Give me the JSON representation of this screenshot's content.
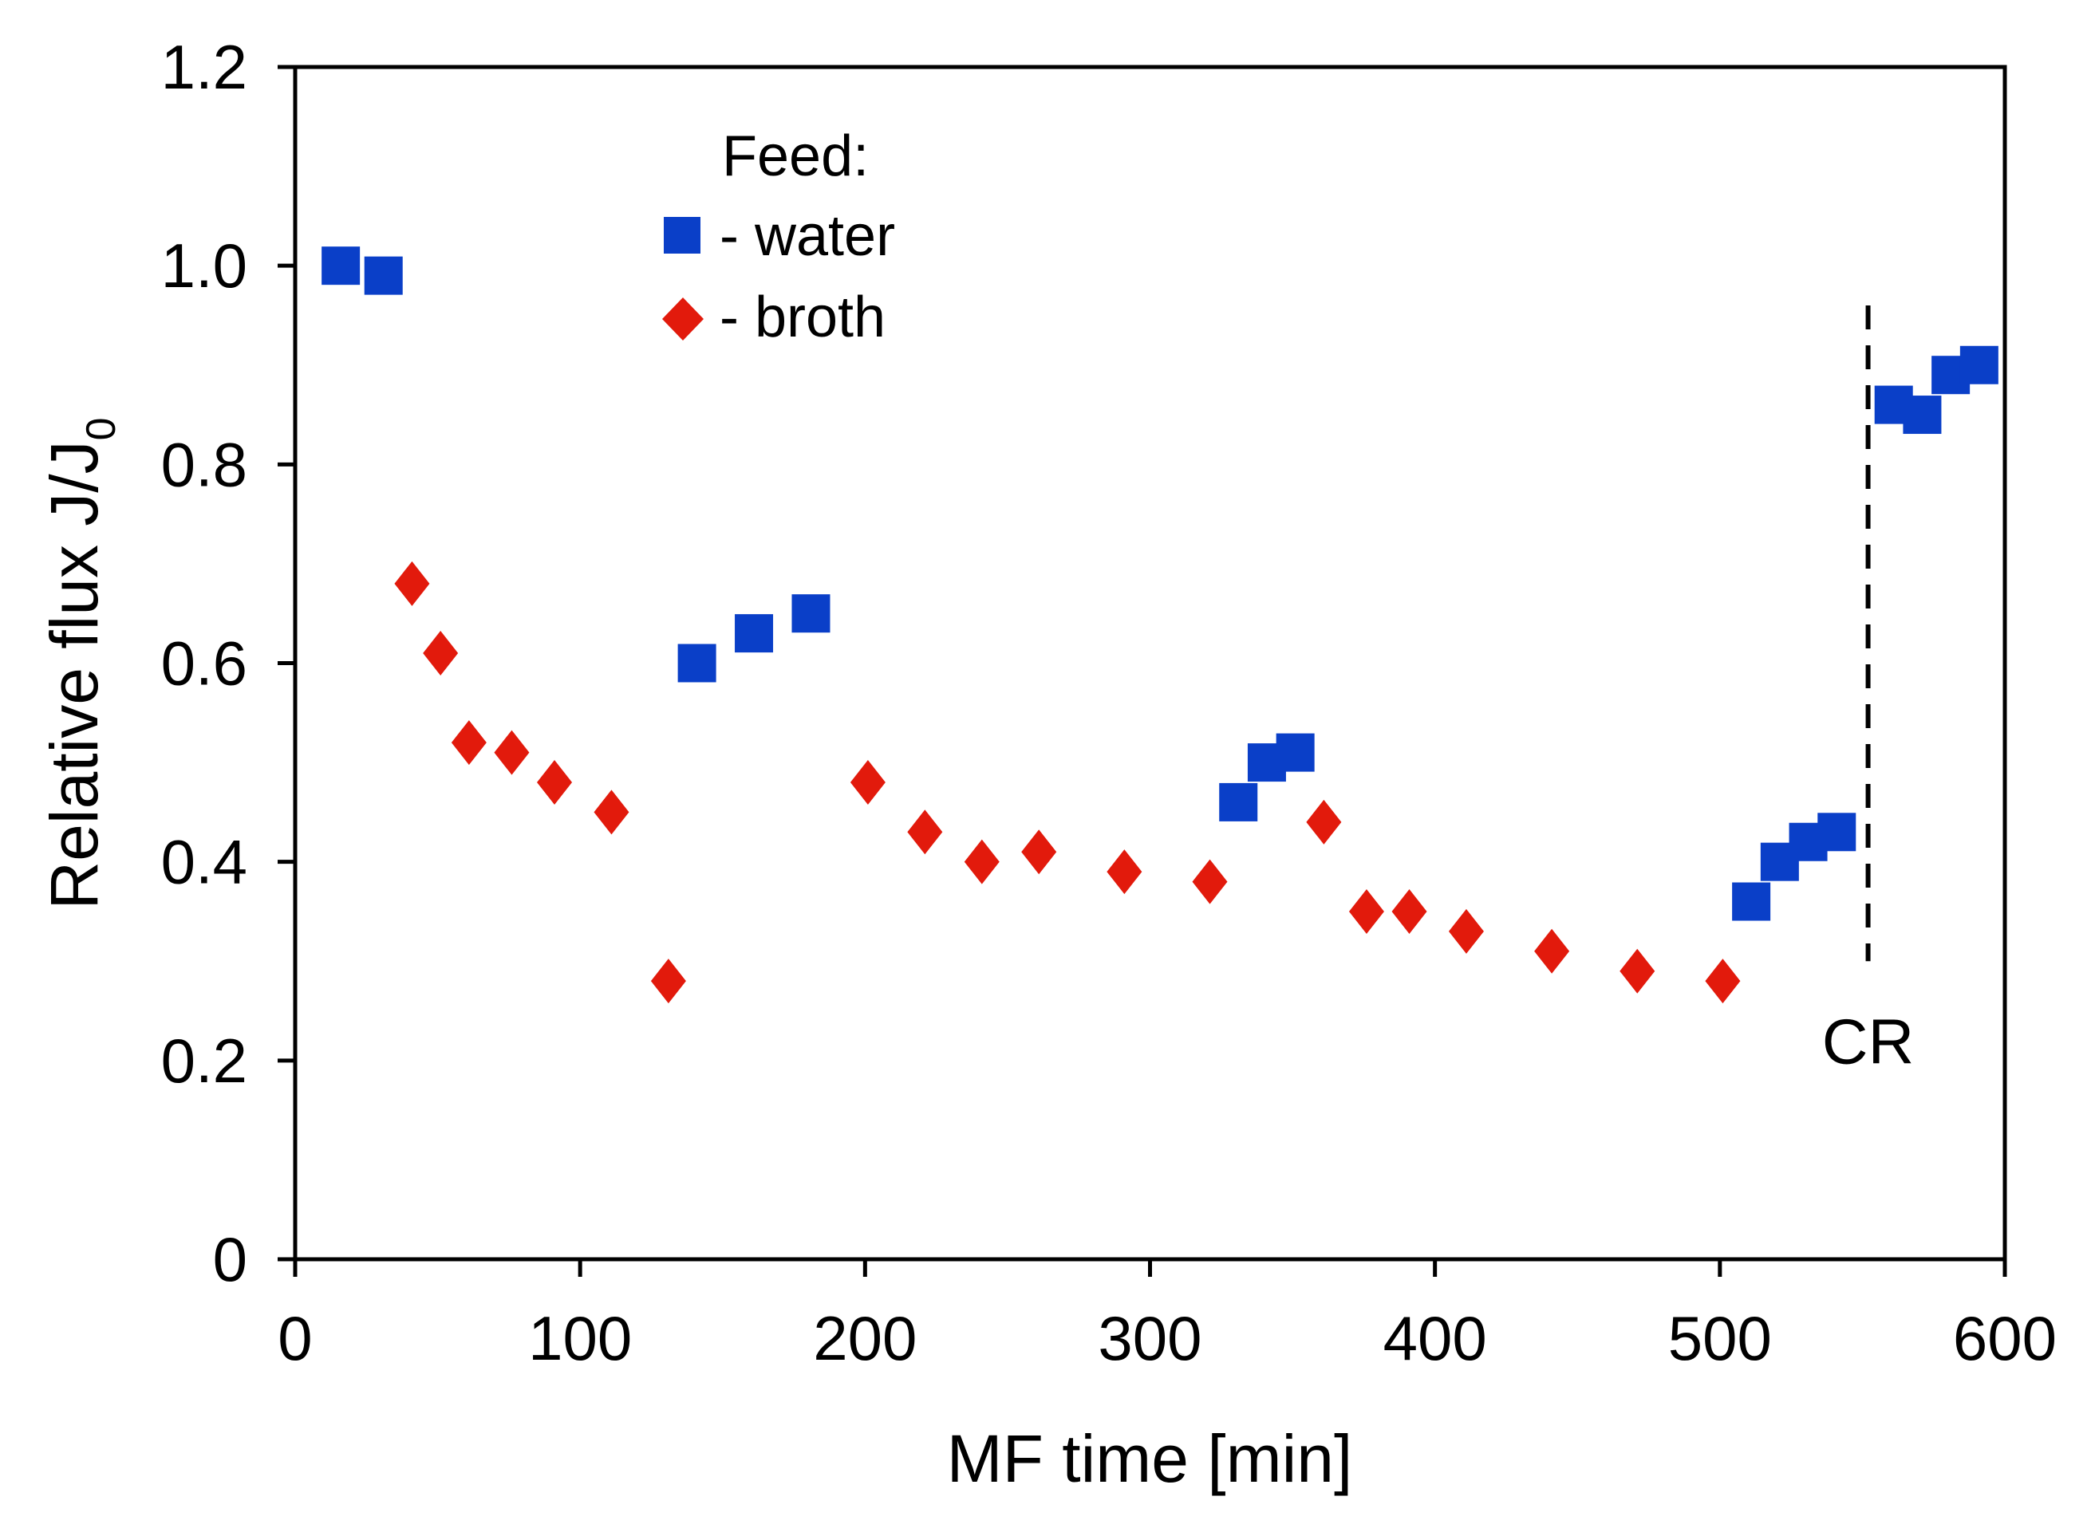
{
  "chart_data": {
    "type": "scatter",
    "title": "",
    "xlabel": "MF time [min]",
    "ylabel": "Relative flux J/J",
    "ylabel_subscript": "0",
    "xlim": [
      0,
      600
    ],
    "ylim": [
      0,
      1.2
    ],
    "xticks": [
      0,
      100,
      200,
      300,
      400,
      500,
      600
    ],
    "xtick_labels": [
      "0",
      "100",
      "200",
      "300",
      "400",
      "500",
      "600"
    ],
    "yticks": [
      0,
      0.2,
      0.4,
      0.6,
      0.8,
      1.0,
      1.2
    ],
    "ytick_labels": [
      "0",
      "0.2",
      "0.4",
      "0.6",
      "0.8",
      "1.0",
      "1.2"
    ],
    "grid": false,
    "legend": {
      "title": "Feed:",
      "placement": "top-left",
      "entries": [
        "- water",
        "- broth"
      ]
    },
    "series": [
      {
        "name": "water",
        "marker": "square",
        "color": "#0a3fc8",
        "points": [
          [
            16,
            1.0
          ],
          [
            31,
            0.99
          ],
          [
            141,
            0.6
          ],
          [
            161,
            0.63
          ],
          [
            181,
            0.65
          ],
          [
            331,
            0.46
          ],
          [
            341,
            0.5
          ],
          [
            351,
            0.51
          ],
          [
            511,
            0.36
          ],
          [
            521,
            0.4
          ],
          [
            531,
            0.42
          ],
          [
            541,
            0.43
          ],
          [
            561,
            0.86
          ],
          [
            571,
            0.85
          ],
          [
            581,
            0.89
          ],
          [
            591,
            0.9
          ]
        ]
      },
      {
        "name": "broth",
        "marker": "diamond",
        "color": "#e21a0c",
        "points": [
          [
            41,
            0.68
          ],
          [
            51,
            0.61
          ],
          [
            61,
            0.52
          ],
          [
            76,
            0.51
          ],
          [
            91,
            0.48
          ],
          [
            111,
            0.45
          ],
          [
            131,
            0.28
          ],
          [
            201,
            0.48
          ],
          [
            221,
            0.43
          ],
          [
            241,
            0.4
          ],
          [
            261,
            0.41
          ],
          [
            291,
            0.39
          ],
          [
            321,
            0.38
          ],
          [
            361,
            0.44
          ],
          [
            376,
            0.35
          ],
          [
            391,
            0.35
          ],
          [
            411,
            0.33
          ],
          [
            441,
            0.31
          ],
          [
            471,
            0.29
          ],
          [
            501,
            0.28
          ]
        ]
      }
    ],
    "annotations": [
      {
        "type": "vline",
        "x": 552,
        "y_range": [
          0.3,
          0.96
        ],
        "style": "dashed",
        "label": "CR"
      }
    ]
  }
}
